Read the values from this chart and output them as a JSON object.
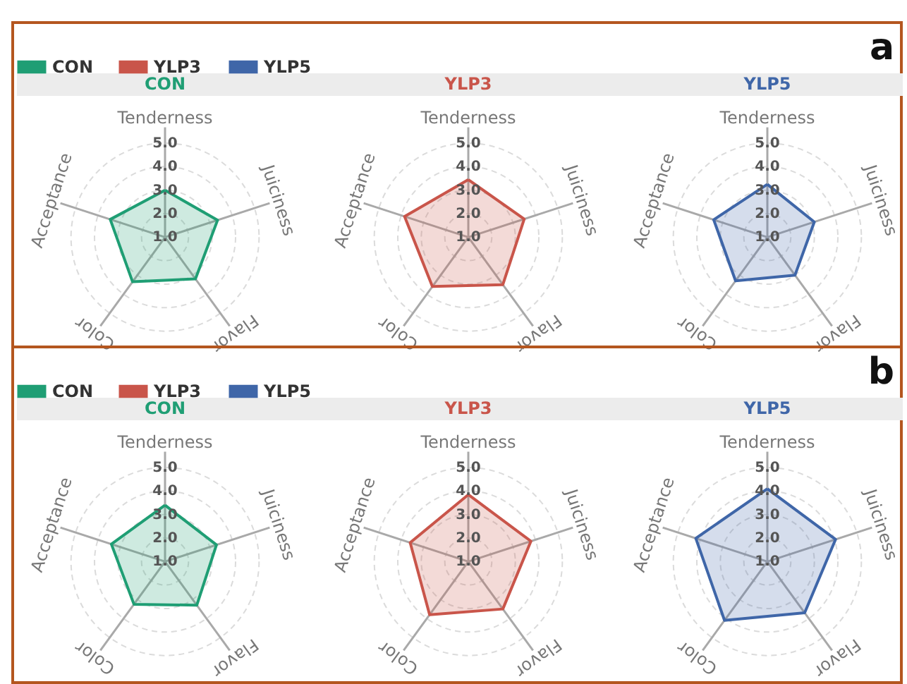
{
  "chart_data": [
    {
      "type": "radar",
      "title": "CON",
      "legend": "top left",
      "annotations": [
        "a"
      ],
      "categories": [
        "Tenderness",
        "Juiciness",
        "Flavor",
        "Color",
        "Acceptance"
      ],
      "ylim": [
        1,
        5
      ],
      "yticks": [
        {
          "value": 1,
          "label": "1.0"
        },
        {
          "value": 2,
          "label": "2.0"
        },
        {
          "value": 3,
          "label": "3.0"
        },
        {
          "value": 4,
          "label": "4.0"
        },
        {
          "value": 5,
          "label": "5.0"
        }
      ],
      "grid": true,
      "series": [
        {
          "name": "CON",
          "color": "#1f9e74",
          "values": [
            3.0,
            3.35,
            3.2,
            3.35,
            3.45
          ]
        }
      ]
    },
    {
      "type": "radar",
      "title": "YLP3",
      "legend": "top left",
      "categories": [
        "Tenderness",
        "Juiciness",
        "Flavor",
        "Color",
        "Acceptance"
      ],
      "ylim": [
        1,
        5
      ],
      "yticks": [
        {
          "value": 1,
          "label": "1.0"
        },
        {
          "value": 2,
          "label": "2.0"
        },
        {
          "value": 3,
          "label": "3.0"
        },
        {
          "value": 4,
          "label": "4.0"
        },
        {
          "value": 5,
          "label": "5.0"
        }
      ],
      "grid": true,
      "series": [
        {
          "name": "YLP3",
          "color": "#c9554a",
          "values": [
            3.45,
            3.5,
            3.5,
            3.6,
            3.85
          ]
        }
      ]
    },
    {
      "type": "radar",
      "title": "YLP5",
      "legend": "top left",
      "categories": [
        "Tenderness",
        "Juiciness",
        "Flavor",
        "Color",
        "Acceptance"
      ],
      "ylim": [
        1,
        5
      ],
      "yticks": [
        {
          "value": 1,
          "label": "1.0"
        },
        {
          "value": 2,
          "label": "2.0"
        },
        {
          "value": 3,
          "label": "3.0"
        },
        {
          "value": 4,
          "label": "4.0"
        },
        {
          "value": 5,
          "label": "5.0"
        }
      ],
      "grid": true,
      "series": [
        {
          "name": "YLP5",
          "color": "#3f66a8",
          "values": [
            3.25,
            3.1,
            3.0,
            3.3,
            3.4
          ]
        }
      ]
    },
    {
      "type": "radar",
      "title": "CON",
      "legend": "top left",
      "annotations": [
        "b"
      ],
      "categories": [
        "Tenderness",
        "Juiciness",
        "Flavor",
        "Color",
        "Acceptance"
      ],
      "ylim": [
        1,
        5
      ],
      "yticks": [
        {
          "value": 1,
          "label": "1.0"
        },
        {
          "value": 2,
          "label": "2.0"
        },
        {
          "value": 3,
          "label": "3.0"
        },
        {
          "value": 4,
          "label": "4.0"
        },
        {
          "value": 5,
          "label": "5.0"
        }
      ],
      "grid": true,
      "series": [
        {
          "name": "CON",
          "color": "#1f9e74",
          "values": [
            3.4,
            3.3,
            3.3,
            3.25,
            3.4
          ]
        }
      ]
    },
    {
      "type": "radar",
      "title": "YLP3",
      "legend": "top left",
      "categories": [
        "Tenderness",
        "Juiciness",
        "Flavor",
        "Color",
        "Acceptance"
      ],
      "ylim": [
        1,
        5
      ],
      "yticks": [
        {
          "value": 1,
          "label": "1.0"
        },
        {
          "value": 2,
          "label": "2.0"
        },
        {
          "value": 3,
          "label": "3.0"
        },
        {
          "value": 4,
          "label": "4.0"
        },
        {
          "value": 5,
          "label": "5.0"
        }
      ],
      "grid": true,
      "series": [
        {
          "name": "YLP3",
          "color": "#c9554a",
          "values": [
            3.85,
            3.8,
            3.5,
            3.8,
            3.6
          ]
        }
      ]
    },
    {
      "type": "radar",
      "title": "YLP5",
      "legend": "top left",
      "categories": [
        "Tenderness",
        "Juiciness",
        "Flavor",
        "Color",
        "Acceptance"
      ],
      "ylim": [
        1,
        5
      ],
      "yticks": [
        {
          "value": 1,
          "label": "1.0"
        },
        {
          "value": 2,
          "label": "2.0"
        },
        {
          "value": 3,
          "label": "3.0"
        },
        {
          "value": 4,
          "label": "4.0"
        },
        {
          "value": 5,
          "label": "5.0"
        }
      ],
      "grid": true,
      "series": [
        {
          "name": "YLP5",
          "color": "#3f66a8",
          "values": [
            4.1,
            4.05,
            3.7,
            4.1,
            4.2
          ]
        }
      ]
    }
  ]
}
